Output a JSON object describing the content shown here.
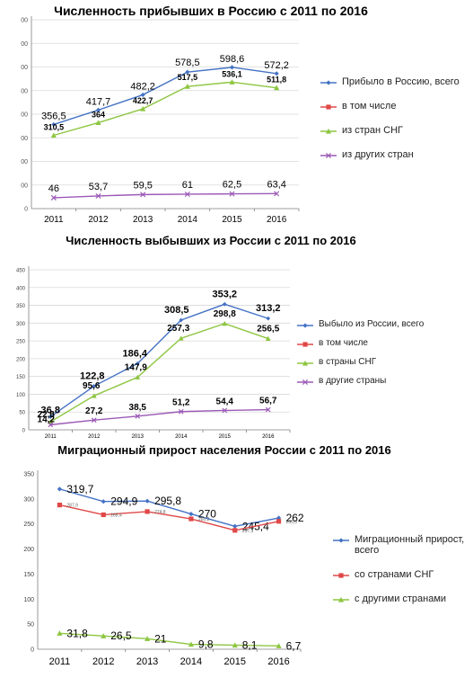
{
  "chart_data": [
    {
      "type": "line",
      "title": "Численность прибывших в Россию с 2011 по 2016",
      "categories": [
        "2011",
        "2012",
        "2013",
        "2014",
        "2015",
        "2016"
      ],
      "yticks": [
        "0",
        "00",
        "00",
        "00",
        "00",
        "00",
        "00",
        "00",
        "00"
      ],
      "ylim": [
        0,
        800
      ],
      "grid": true,
      "legend_position": "right",
      "series": [
        {
          "name": "Прибыло в Россию, всего",
          "color": "#4472C4",
          "marker": "diamond",
          "values": [
            356.5,
            417.7,
            482.2,
            578.5,
            598.6,
            572.2
          ],
          "labels": [
            "356,5",
            "417,7",
            "482,2",
            "578,5",
            "598,6",
            "572,2"
          ]
        },
        {
          "name": "в том числе",
          "color": "#E04848",
          "marker": "square",
          "values": null,
          "labels": null
        },
        {
          "name": "из стран СНГ",
          "color": "#8DC640",
          "marker": "triangle",
          "values": [
            310.5,
            364,
            422.7,
            517.5,
            536.1,
            511.8
          ],
          "labels": [
            "310,5",
            "364",
            "422,7",
            "517,5",
            "536,1",
            "511,8"
          ]
        },
        {
          "name": "из других стран",
          "color": "#9B59B6",
          "marker": "x",
          "values": [
            46,
            53.7,
            59.5,
            61,
            62.5,
            63.4
          ],
          "labels": [
            "46",
            "53,7",
            "59,5",
            "61",
            "62,5",
            "63,4"
          ]
        }
      ]
    },
    {
      "type": "line",
      "title": "Численность выбывших из России с 2011 по 2016",
      "categories": [
        "2011",
        "2012",
        "2013",
        "2014",
        "2015",
        "2016"
      ],
      "yticks": [
        "0",
        "50",
        "100",
        "150",
        "200",
        "250",
        "300",
        "350",
        "400",
        "450"
      ],
      "ylim": [
        0,
        450
      ],
      "grid": true,
      "legend_position": "right",
      "series": [
        {
          "name": "Выбыло из России, всего",
          "color": "#4472C4",
          "marker": "diamond",
          "values": [
            36.8,
            122.8,
            186.4,
            308.5,
            353.2,
            313.2
          ],
          "labels": [
            "36,8",
            "122,8",
            "186,4",
            "308,5",
            "353,2",
            "313,2"
          ]
        },
        {
          "name": "в том числе",
          "color": "#E04848",
          "marker": "square",
          "values": null,
          "labels": null
        },
        {
          "name": "в страны СНГ",
          "color": "#8DC640",
          "marker": "triangle",
          "values": [
            22.6,
            95.6,
            147.9,
            257.3,
            298.8,
            256.5
          ],
          "labels": [
            "22,6",
            "95,6",
            "147,9",
            "257,3",
            "298,8",
            "256,5"
          ]
        },
        {
          "name": "в другие страны",
          "color": "#9B59B6",
          "marker": "x",
          "values": [
            14.2,
            27.2,
            38.5,
            51.2,
            54.4,
            56.7
          ],
          "labels": [
            "14,2",
            "27,2",
            "38,5",
            "51,2",
            "54,4",
            "56,7"
          ]
        }
      ]
    },
    {
      "type": "line",
      "title": "Миграционный прирост населения России с 2011 по 2016",
      "categories": [
        "2011",
        "2012",
        "2013",
        "2014",
        "2015",
        "2016"
      ],
      "yticks": [
        "0",
        "50",
        "100",
        "150",
        "200",
        "250",
        "300",
        "350"
      ],
      "ylim": [
        0,
        350
      ],
      "grid": false,
      "legend_position": "right",
      "series": [
        {
          "name": "Миграционный прирост, всего",
          "color": "#4472C4",
          "marker": "diamond",
          "values": [
            319.7,
            294.9,
            295.8,
            270,
            245.4,
            262
          ],
          "labels": [
            "319,7",
            "294,9",
            "295,8",
            "270",
            "245,4",
            "262"
          ]
        },
        {
          "name": "со странами СНГ",
          "color": "#E04848",
          "marker": "square",
          "values": [
            287.9,
            268.4,
            274.8,
            260.2,
            237.3,
            255.3
          ],
          "labels": [
            "287,9",
            "268,4",
            "274,8",
            "260,2",
            "237,3",
            "255,3"
          ]
        },
        {
          "name": "с другими странами",
          "color": "#8DC640",
          "marker": "triangle",
          "values": [
            31.8,
            26.5,
            21,
            9.8,
            8.1,
            6.7
          ],
          "labels": [
            "31,8",
            "26,5",
            "21",
            "9,8",
            "8,1",
            "6,7"
          ]
        }
      ]
    }
  ]
}
